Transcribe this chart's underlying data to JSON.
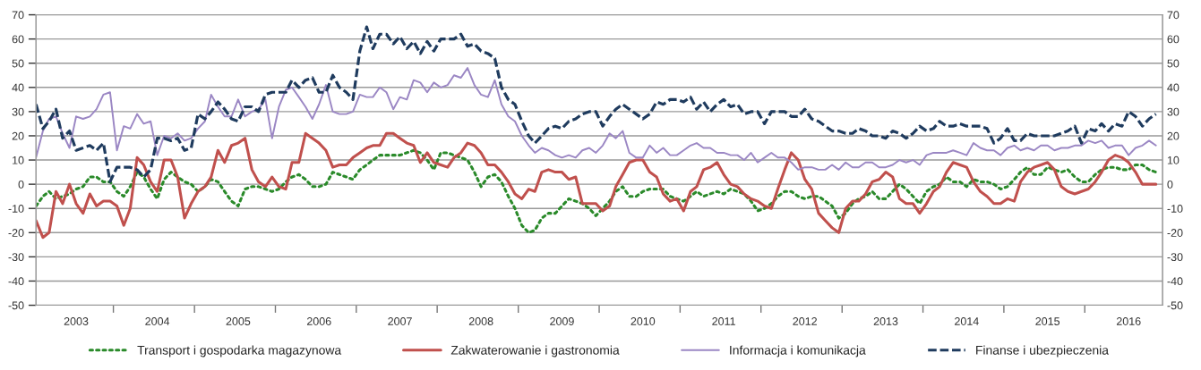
{
  "chart_data": {
    "type": "line",
    "x": [
      "2003-01",
      "2003-02",
      "2003-03",
      "2003-04",
      "2003-05",
      "2003-06",
      "2003-07",
      "2003-08",
      "2003-09",
      "2003-10",
      "2003-11",
      "2003-12",
      "2004-01",
      "2004-02",
      "2004-03",
      "2004-04",
      "2004-05",
      "2004-06",
      "2004-07",
      "2004-08",
      "2004-09",
      "2004-10",
      "2004-11",
      "2004-12",
      "2005-01",
      "2005-02",
      "2005-03",
      "2005-04",
      "2005-05",
      "2005-06",
      "2005-07",
      "2005-08",
      "2005-09",
      "2005-10",
      "2005-11",
      "2005-12",
      "2006-01",
      "2006-02",
      "2006-03",
      "2006-04",
      "2006-05",
      "2006-06",
      "2006-07",
      "2006-08",
      "2006-09",
      "2006-10",
      "2006-11",
      "2006-12",
      "2007-01",
      "2007-02",
      "2007-03",
      "2007-04",
      "2007-05",
      "2007-06",
      "2007-07",
      "2007-08",
      "2007-09",
      "2007-10",
      "2007-11",
      "2007-12",
      "2008-01",
      "2008-02",
      "2008-03",
      "2008-04",
      "2008-05",
      "2008-06",
      "2008-07",
      "2008-08",
      "2008-09",
      "2008-10",
      "2008-11",
      "2008-12",
      "2009-01",
      "2009-02",
      "2009-03",
      "2009-04",
      "2009-05",
      "2009-06",
      "2009-07",
      "2009-08",
      "2009-09",
      "2009-10",
      "2009-11",
      "2009-12",
      "2010-01",
      "2010-02",
      "2010-03",
      "2010-04",
      "2010-05",
      "2010-06",
      "2010-07",
      "2010-08",
      "2010-09",
      "2010-10",
      "2010-11",
      "2010-12",
      "2011-01",
      "2011-02",
      "2011-03",
      "2011-04",
      "2011-05",
      "2011-06",
      "2011-07",
      "2011-08",
      "2011-09",
      "2011-10",
      "2011-11",
      "2011-12",
      "2012-01",
      "2012-02",
      "2012-03",
      "2012-04",
      "2012-05",
      "2012-06",
      "2012-07",
      "2012-08",
      "2012-09",
      "2012-10",
      "2012-11",
      "2012-12",
      "2013-01",
      "2013-02",
      "2013-03",
      "2013-04",
      "2013-05",
      "2013-06",
      "2013-07",
      "2013-08",
      "2013-09",
      "2013-10",
      "2013-11",
      "2013-12",
      "2014-01",
      "2014-02",
      "2014-03",
      "2014-04",
      "2014-05",
      "2014-06",
      "2014-07",
      "2014-08",
      "2014-09",
      "2014-10",
      "2014-11",
      "2014-12",
      "2015-01",
      "2015-02",
      "2015-03",
      "2015-04",
      "2015-05",
      "2015-06",
      "2015-07",
      "2015-08",
      "2015-09",
      "2015-10",
      "2015-11",
      "2015-12",
      "2016-01",
      "2016-02",
      "2016-03",
      "2016-04",
      "2016-05",
      "2016-06",
      "2016-07",
      "2016-08",
      "2016-09",
      "2016-10",
      "2016-11"
    ],
    "series": [
      {
        "name": "Transport i gospodarka magazynowa",
        "color": "#2a8a2a",
        "line_style": "dotted",
        "values": [
          -9,
          -5,
          -3,
          -6,
          -5,
          -4,
          -2,
          -1,
          3,
          3,
          1,
          1,
          -3,
          -5,
          -1,
          5,
          3,
          -2,
          -6,
          2,
          5,
          3,
          1,
          0,
          -3,
          -1,
          2,
          1,
          -3,
          -7,
          -9,
          -2,
          -1,
          -1,
          -2,
          -3,
          -2,
          1,
          3,
          4,
          2,
          -1,
          -1,
          0,
          5,
          4,
          3,
          2,
          6,
          8,
          10,
          12,
          12,
          12,
          12,
          13,
          14,
          13,
          10,
          6,
          13,
          13,
          12,
          11,
          10,
          5,
          -1,
          3,
          4,
          1,
          -5,
          -10,
          -17,
          -20,
          -19,
          -14,
          -12,
          -12,
          -9,
          -6,
          -7,
          -8,
          -10,
          -13,
          -10,
          -7,
          -3,
          -1,
          -5,
          -5,
          -3,
          -2,
          -2,
          -2,
          -5,
          -6,
          -7,
          -5,
          -3,
          -5,
          -4,
          -3,
          -4,
          -2,
          -3,
          -4,
          -7,
          -11,
          -10,
          -8,
          -5,
          -3,
          -3,
          -5,
          -6,
          -5,
          -5,
          -7,
          -9,
          -14,
          -12,
          -8,
          -6,
          -5,
          -3,
          -6,
          -6,
          -3,
          0,
          -2,
          -5,
          -8,
          -3,
          -1,
          0,
          3,
          1,
          1,
          -1,
          2,
          1,
          1,
          0,
          -2,
          -1,
          2,
          5,
          7,
          4,
          4,
          7,
          6,
          5,
          6,
          3,
          1,
          1,
          4,
          6,
          7,
          7,
          6,
          6,
          8,
          8,
          6,
          5
        ]
      },
      {
        "name": "Zakwaterowanie i gastronomia",
        "color": "#c0504d",
        "line_style": "solid",
        "values": [
          -15,
          -22,
          -20,
          -3,
          -8,
          0,
          -8,
          -12,
          -4,
          -9,
          -7,
          -7,
          -9,
          -17,
          -10,
          11,
          8,
          1,
          -3,
          10,
          10,
          3,
          -14,
          -8,
          -3,
          -1,
          3,
          14,
          9,
          16,
          17,
          19,
          6,
          1,
          -1,
          3,
          -1,
          -2,
          9,
          9,
          21,
          19,
          17,
          14,
          7,
          8,
          8,
          11,
          13,
          15,
          16,
          16,
          21,
          21,
          19,
          17,
          16,
          9,
          13,
          9,
          8,
          7,
          11,
          13,
          17,
          16,
          13,
          8,
          8,
          5,
          1,
          -4,
          -6,
          -2,
          -3,
          5,
          6,
          5,
          5,
          2,
          3,
          -8,
          -8,
          -8,
          -11,
          -9,
          -1,
          4,
          9,
          10,
          10,
          5,
          3,
          -4,
          -7,
          -6,
          -11,
          -3,
          -1,
          6,
          7,
          9,
          4,
          0,
          -1,
          -4,
          -6,
          -7,
          -9,
          -10,
          -2,
          6,
          13,
          10,
          2,
          -2,
          -12,
          -15,
          -18,
          -20,
          -10,
          -7,
          -7,
          -4,
          1,
          2,
          5,
          3,
          -6,
          -8,
          -8,
          -12,
          -8,
          -3,
          -1,
          5,
          9,
          8,
          7,
          1,
          -3,
          -5,
          -8,
          -8,
          -6,
          -7,
          1,
          5,
          7,
          8,
          9,
          6,
          -1,
          -3,
          -4,
          -3,
          -2,
          1,
          5,
          10,
          12,
          11,
          9,
          5,
          0,
          0,
          0
        ]
      },
      {
        "name": "Informacja i komunikacja",
        "color": "#9b87c4",
        "line_style": "solid",
        "values": [
          11,
          22,
          27,
          28,
          21,
          15,
          28,
          27,
          28,
          31,
          37,
          38,
          14,
          24,
          23,
          29,
          25,
          26,
          12,
          20,
          19,
          21,
          18,
          19,
          23,
          26,
          37,
          32,
          28,
          28,
          35,
          28,
          30,
          31,
          35,
          19,
          32,
          39,
          40,
          36,
          32,
          27,
          33,
          41,
          30,
          29,
          29,
          30,
          37,
          36,
          36,
          40,
          38,
          31,
          36,
          35,
          43,
          42,
          38,
          42,
          40,
          41,
          45,
          44,
          48,
          41,
          37,
          36,
          43,
          33,
          28,
          26,
          20,
          16,
          13,
          15,
          14,
          12,
          11,
          12,
          11,
          14,
          15,
          13,
          16,
          21,
          19,
          22,
          13,
          11,
          11,
          16,
          13,
          15,
          12,
          12,
          14,
          16,
          17,
          15,
          15,
          13,
          13,
          12,
          12,
          10,
          13,
          9,
          11,
          13,
          11,
          11,
          9,
          6,
          7,
          7,
          6,
          6,
          8,
          6,
          9,
          7,
          7,
          9,
          9,
          7,
          7,
          8,
          10,
          9,
          10,
          8,
          12,
          13,
          13,
          13,
          14,
          13,
          12,
          17,
          15,
          14,
          14,
          12,
          15,
          16,
          14,
          15,
          14,
          16,
          16,
          14,
          15,
          15,
          16,
          16,
          18,
          17,
          18,
          15,
          16,
          16,
          12,
          15,
          16,
          18,
          16
        ]
      },
      {
        "name": "Finanse i ubezpieczenia",
        "color": "#1f3b5e",
        "line_style": "dashed",
        "values": [
          33,
          23,
          26,
          31,
          19,
          22,
          14,
          15,
          16,
          14,
          17,
          1,
          7,
          7,
          7,
          6,
          3,
          6,
          19,
          19,
          18,
          19,
          14,
          15,
          29,
          27,
          30,
          34,
          31,
          27,
          26,
          32,
          32,
          30,
          37,
          38,
          38,
          38,
          43,
          40,
          43,
          44,
          38,
          38,
          45,
          40,
          38,
          35,
          55,
          65,
          56,
          62,
          62,
          58,
          61,
          56,
          59,
          54,
          59,
          55,
          60,
          60,
          60,
          62,
          57,
          58,
          55,
          54,
          52,
          40,
          35,
          33,
          26,
          20,
          17,
          20,
          23,
          24,
          23,
          26,
          27,
          29,
          30,
          30,
          24,
          28,
          31,
          33,
          31,
          29,
          27,
          29,
          34,
          33,
          35,
          35,
          34,
          36,
          31,
          34,
          30,
          33,
          35,
          32,
          33,
          29,
          30,
          30,
          25,
          30,
          30,
          30,
          28,
          28,
          31,
          27,
          26,
          24,
          22,
          22,
          21,
          21,
          23,
          22,
          20,
          20,
          19,
          22,
          21,
          19,
          21,
          24,
          22,
          23,
          26,
          24,
          24,
          25,
          24,
          24,
          24,
          23,
          17,
          19,
          23,
          18,
          18,
          21,
          20,
          20,
          20,
          20,
          21,
          22,
          24,
          17,
          23,
          22,
          25,
          22,
          25,
          24,
          30,
          28,
          24,
          27,
          29
        ]
      }
    ],
    "xlim": [
      "2003-01",
      "2016-12"
    ],
    "xticks": [
      {
        "value": "2003-07",
        "label": "2003"
      },
      {
        "value": "2003-12-16",
        "label": null
      },
      {
        "value": "2004-07",
        "label": "2004"
      },
      {
        "value": "2004-12-16",
        "label": null
      },
      {
        "value": "2005-07",
        "label": "2005"
      },
      {
        "value": "2005-12-16",
        "label": null
      },
      {
        "value": "2006-07",
        "label": "2006"
      },
      {
        "value": "2006-12-16",
        "label": null
      },
      {
        "value": "2007-07",
        "label": "2007"
      },
      {
        "value": "2007-12-16",
        "label": null
      },
      {
        "value": "2008-07",
        "label": "2008"
      },
      {
        "value": "2008-12-16",
        "label": null
      },
      {
        "value": "2009-07",
        "label": "2009"
      },
      {
        "value": "2009-12-16",
        "label": null
      },
      {
        "value": "2010-07",
        "label": "2010"
      },
      {
        "value": "2010-12-16",
        "label": null
      },
      {
        "value": "2011-07",
        "label": "2011"
      },
      {
        "value": "2011-12-16",
        "label": null
      },
      {
        "value": "2012-07",
        "label": "2012"
      },
      {
        "value": "2012-12-16",
        "label": null
      },
      {
        "value": "2013-07",
        "label": "2013"
      },
      {
        "value": "2013-12-16",
        "label": null
      },
      {
        "value": "2014-07",
        "label": "2014"
      },
      {
        "value": "2014-12-16",
        "label": null
      },
      {
        "value": "2015-07",
        "label": "2015"
      },
      {
        "value": "2015-12-16",
        "label": null
      },
      {
        "value": "2016-07",
        "label": "2016"
      }
    ],
    "ylim": [
      -50,
      70
    ],
    "yticks": [
      -50,
      -40,
      -30,
      -20,
      -10,
      0,
      10,
      20,
      30,
      40,
      50,
      60,
      70
    ],
    "y2lim": [
      -50,
      70
    ],
    "y2ticks": [
      -50,
      -40,
      -30,
      -20,
      -10,
      0,
      10,
      20,
      30,
      40,
      50,
      60,
      70
    ],
    "grid": "y",
    "legend": "bottom"
  }
}
